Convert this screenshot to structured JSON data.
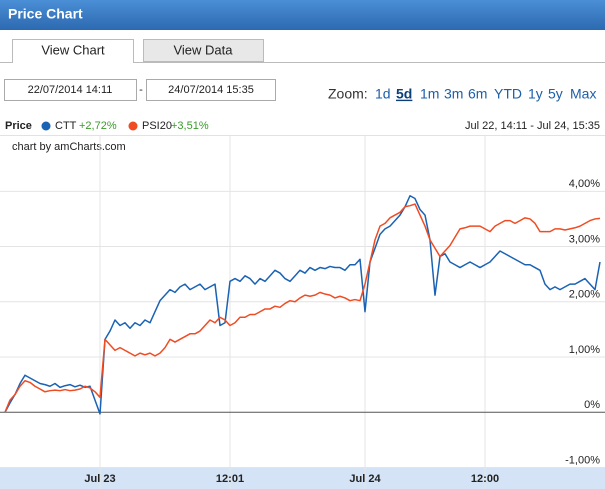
{
  "header": {
    "title": "Price Chart"
  },
  "tabs": [
    "View Chart",
    "View Data"
  ],
  "controls": {
    "date_from": "22/07/2014 14:11",
    "separator": "-",
    "date_to": "24/07/2014 15:35",
    "zoom_label": "Zoom:",
    "zoom_options": [
      "1d",
      "5d",
      "1m",
      "3m",
      "6m",
      "YTD",
      "1y",
      "5y",
      "Max"
    ],
    "zoom_active": "5d"
  },
  "legend": {
    "label": "Price",
    "range": "Jul 22, 14:11 - Jul 24, 15:35",
    "credit": "chart by amCharts.com"
  },
  "chart_data": {
    "type": "line",
    "categories": [
      null,
      null,
      null,
      null,
      null,
      null,
      null,
      null,
      null,
      null,
      null,
      null,
      null,
      null,
      null,
      null,
      null,
      null,
      null,
      "Jul 23",
      null,
      null,
      null,
      null,
      null,
      null,
      null,
      null,
      null,
      null,
      null,
      null,
      null,
      null,
      null,
      null,
      null,
      null,
      null,
      null,
      null,
      null,
      null,
      null,
      null,
      "12:01",
      null,
      null,
      null,
      null,
      null,
      null,
      null,
      null,
      null,
      null,
      null,
      null,
      null,
      null,
      null,
      null,
      null,
      null,
      null,
      null,
      null,
      null,
      null,
      null,
      null,
      null,
      "Jul 24",
      null,
      null,
      null,
      null,
      null,
      null,
      null,
      null,
      null,
      null,
      null,
      null,
      null,
      null,
      null,
      null,
      null,
      null,
      null,
      null,
      null,
      null,
      null,
      "12:00",
      null,
      null,
      null,
      null,
      null,
      null,
      null,
      null,
      null,
      null,
      null,
      null,
      null,
      null,
      null,
      null,
      null,
      null,
      null,
      null,
      null,
      null,
      null
    ],
    "series": [
      {
        "name": "CTT",
        "change": "+2,72%",
        "color": "#1a62b3",
        "values": [
          0,
          0.17,
          0.32,
          0.52,
          0.67,
          0.62,
          0.57,
          0.52,
          0.5,
          0.47,
          0.52,
          0.45,
          0.48,
          0.5,
          0.46,
          0.49,
          0.45,
          0.47,
          0.22,
          -0.03,
          1.32,
          1.47,
          1.67,
          1.57,
          1.62,
          1.52,
          1.62,
          1.57,
          1.67,
          1.62,
          1.82,
          2.02,
          2.12,
          2.22,
          2.17,
          2.27,
          2.32,
          2.22,
          2.27,
          2.32,
          2.22,
          2.27,
          2.32,
          1.57,
          1.62,
          2.37,
          2.42,
          2.37,
          2.47,
          2.42,
          2.32,
          2.42,
          2.37,
          2.47,
          2.57,
          2.52,
          2.42,
          2.37,
          2.47,
          2.57,
          2.52,
          2.62,
          2.57,
          2.62,
          2.6,
          2.64,
          2.62,
          2.62,
          2.57,
          2.67,
          2.67,
          2.77,
          1.82,
          2.72,
          2.97,
          3.22,
          3.32,
          3.37,
          3.47,
          3.57,
          3.72,
          3.92,
          3.87,
          3.67,
          3.57,
          3.12,
          2.12,
          2.82,
          2.87,
          2.72,
          2.67,
          2.62,
          2.67,
          2.72,
          2.67,
          2.62,
          2.67,
          2.72,
          2.82,
          2.92,
          2.87,
          2.82,
          2.77,
          2.72,
          2.67,
          2.67,
          2.62,
          2.57,
          2.32,
          2.22,
          2.27,
          2.22,
          2.27,
          2.32,
          2.32,
          2.37,
          2.42,
          2.32,
          2.22,
          2.72
        ]
      },
      {
        "name": "PSI20",
        "change": "+3,51%",
        "color": "#f04c23",
        "values": [
          0,
          0.22,
          0.32,
          0.47,
          0.57,
          0.54,
          0.47,
          0.42,
          0.37,
          0.39,
          0.4,
          0.39,
          0.41,
          0.39,
          0.4,
          0.42,
          0.47,
          0.44,
          0.37,
          0.27,
          1.32,
          1.22,
          1.12,
          1.17,
          1.12,
          1.07,
          1.02,
          1.07,
          1.04,
          1.07,
          1.02,
          1.07,
          1.17,
          1.32,
          1.27,
          1.32,
          1.37,
          1.42,
          1.42,
          1.47,
          1.57,
          1.67,
          1.62,
          1.72,
          1.67,
          1.57,
          1.62,
          1.72,
          1.72,
          1.77,
          1.77,
          1.82,
          1.87,
          1.87,
          1.92,
          1.9,
          1.97,
          2.02,
          2.0,
          2.07,
          2.12,
          2.1,
          2.12,
          2.17,
          2.14,
          2.12,
          2.07,
          2.1,
          2.07,
          2.02,
          2.04,
          2.02,
          2.32,
          2.72,
          3.12,
          3.37,
          3.42,
          3.52,
          3.57,
          3.62,
          3.72,
          3.74,
          3.77,
          3.57,
          3.37,
          3.12,
          2.97,
          2.82,
          2.92,
          3.02,
          3.17,
          3.32,
          3.34,
          3.37,
          3.37,
          3.37,
          3.32,
          3.27,
          3.37,
          3.42,
          3.47,
          3.47,
          3.42,
          3.47,
          3.52,
          3.5,
          3.42,
          3.27,
          3.27,
          3.27,
          3.32,
          3.32,
          3.3,
          3.32,
          3.34,
          3.37,
          3.42,
          3.47,
          3.5,
          3.51
        ]
      }
    ],
    "ylim": [
      -1.01,
      5.02
    ],
    "yticks": [
      {
        "value": 4,
        "label": "4,00%"
      },
      {
        "value": 3,
        "label": "3,00%"
      },
      {
        "value": 2,
        "label": "2,00%"
      },
      {
        "value": 1,
        "label": "1,00%"
      },
      {
        "value": 0,
        "label": "0%"
      },
      {
        "value": -1,
        "label": "-1,00%"
      }
    ],
    "grid": true
  }
}
